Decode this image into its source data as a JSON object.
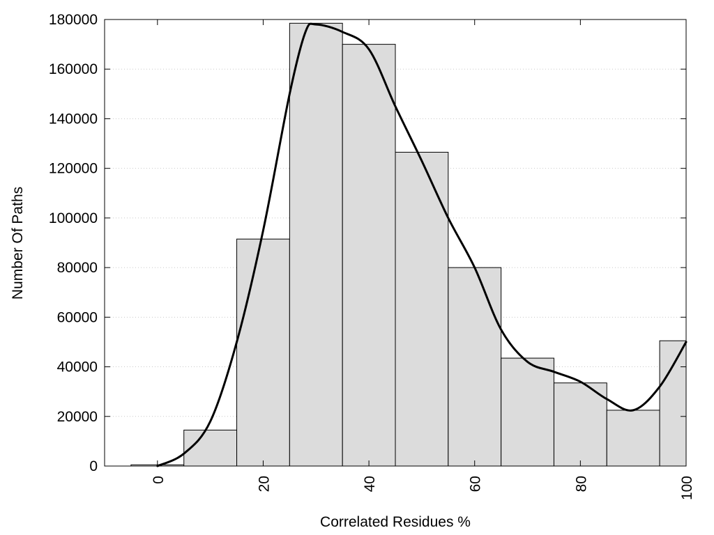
{
  "chart_data": {
    "type": "bar",
    "title": "",
    "xlabel": "Correlated Residues %",
    "ylabel": "Number Of Paths",
    "bin_width": 10,
    "bins": [
      {
        "center": 0,
        "value": 500
      },
      {
        "center": 10,
        "value": 14500
      },
      {
        "center": 20,
        "value": 91500
      },
      {
        "center": 30,
        "value": 178500
      },
      {
        "center": 40,
        "value": 170000
      },
      {
        "center": 50,
        "value": 126500
      },
      {
        "center": 60,
        "value": 80000
      },
      {
        "center": 70,
        "value": 43500
      },
      {
        "center": 80,
        "value": 33500
      },
      {
        "center": 90,
        "value": 22500
      },
      {
        "center": 100,
        "value": 50500
      }
    ],
    "xlim": [
      -10,
      100
    ],
    "ylim": [
      0,
      180000
    ],
    "x_ticks": [
      "0",
      "20",
      "40",
      "60",
      "80",
      "100"
    ],
    "x_tick_values": [
      0,
      20,
      40,
      60,
      80,
      100
    ],
    "y_ticks": [
      "0",
      "20000",
      "40000",
      "60000",
      "80000",
      "100000",
      "120000",
      "140000",
      "160000",
      "180000"
    ],
    "y_tick_values": [
      0,
      20000,
      40000,
      60000,
      80000,
      100000,
      120000,
      140000,
      160000,
      180000
    ],
    "grid": "horizontal dotted",
    "density_curve": {
      "x": [
        0,
        5,
        10,
        15,
        20,
        25,
        28,
        30,
        35,
        40,
        45,
        50,
        55,
        60,
        65,
        70,
        75,
        80,
        85,
        90,
        95,
        100
      ],
      "y": [
        0,
        5000,
        18000,
        50000,
        95000,
        150000,
        175000,
        178000,
        175000,
        168000,
        145000,
        123000,
        100000,
        80000,
        55000,
        42000,
        38000,
        34000,
        27000,
        22500,
        32000,
        50000
      ]
    }
  }
}
